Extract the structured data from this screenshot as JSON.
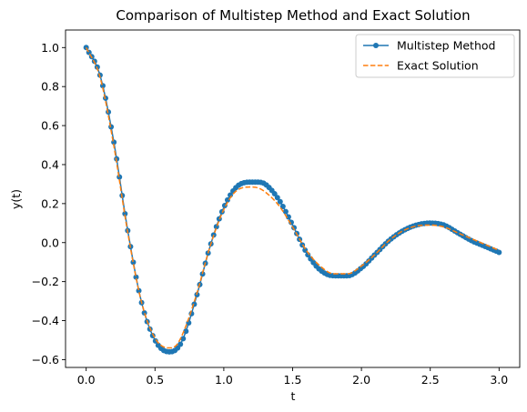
{
  "chart_data": {
    "type": "line",
    "title": "Comparison of Multistep Method and Exact Solution",
    "xlabel": "t",
    "ylabel": "y(t)",
    "xlim": [
      -0.15,
      3.15
    ],
    "ylim": [
      -0.64,
      1.09
    ],
    "xticks": [
      0.0,
      0.5,
      1.0,
      1.5,
      2.0,
      2.5,
      3.0
    ],
    "xtick_labels": [
      "0.0",
      "0.5",
      "1.0",
      "1.5",
      "2.0",
      "2.5",
      "3.0"
    ],
    "yticks": [
      -0.6,
      -0.4,
      -0.2,
      0.0,
      0.2,
      0.4,
      0.6,
      0.8,
      1.0
    ],
    "ytick_labels": [
      "−0.6",
      "−0.4",
      "−0.2",
      "0.0",
      "0.2",
      "0.4",
      "0.6",
      "0.8",
      "1.0"
    ],
    "grid": false,
    "legend_position": "top-right",
    "series": [
      {
        "name": "Multistep Method",
        "color": "#1f77b4",
        "style": "solid",
        "marker": "circle",
        "x": [
          0.0,
          0.1,
          0.2,
          0.3,
          0.4,
          0.5,
          0.6,
          0.65,
          0.7,
          0.8,
          0.9,
          1.0,
          1.1,
          1.2,
          1.25,
          1.3,
          1.4,
          1.5,
          1.6,
          1.7,
          1.8,
          1.9,
          2.0,
          2.1,
          2.2,
          2.3,
          2.4,
          2.5,
          2.6,
          2.7,
          2.8,
          2.9,
          3.0
        ],
        "y": [
          1.0,
          0.86,
          0.52,
          0.07,
          -0.3,
          -0.5,
          -0.56,
          -0.55,
          -0.5,
          -0.28,
          -0.02,
          0.18,
          0.29,
          0.31,
          0.31,
          0.3,
          0.22,
          0.09,
          -0.05,
          -0.14,
          -0.17,
          -0.17,
          -0.13,
          -0.06,
          0.01,
          0.06,
          0.09,
          0.1,
          0.09,
          0.05,
          0.01,
          -0.02,
          -0.05
        ],
        "n_points": 150
      },
      {
        "name": "Exact Solution",
        "color": "#ff7f0e",
        "style": "dashed",
        "marker": "none",
        "x": [
          0.0,
          0.1,
          0.2,
          0.3,
          0.4,
          0.5,
          0.6,
          0.65,
          0.7,
          0.8,
          0.9,
          1.0,
          1.1,
          1.2,
          1.25,
          1.3,
          1.4,
          1.5,
          1.6,
          1.7,
          1.8,
          1.9,
          2.0,
          2.1,
          2.2,
          2.3,
          2.4,
          2.5,
          2.6,
          2.7,
          2.8,
          2.9,
          3.0
        ],
        "y": [
          1.0,
          0.85,
          0.5,
          0.06,
          -0.3,
          -0.49,
          -0.54,
          -0.53,
          -0.47,
          -0.27,
          -0.02,
          0.17,
          0.27,
          0.285,
          0.28,
          0.26,
          0.19,
          0.08,
          -0.04,
          -0.12,
          -0.16,
          -0.16,
          -0.12,
          -0.06,
          0.01,
          0.06,
          0.085,
          0.09,
          0.08,
          0.05,
          0.02,
          -0.01,
          -0.04
        ],
        "n_points": 300
      }
    ]
  }
}
